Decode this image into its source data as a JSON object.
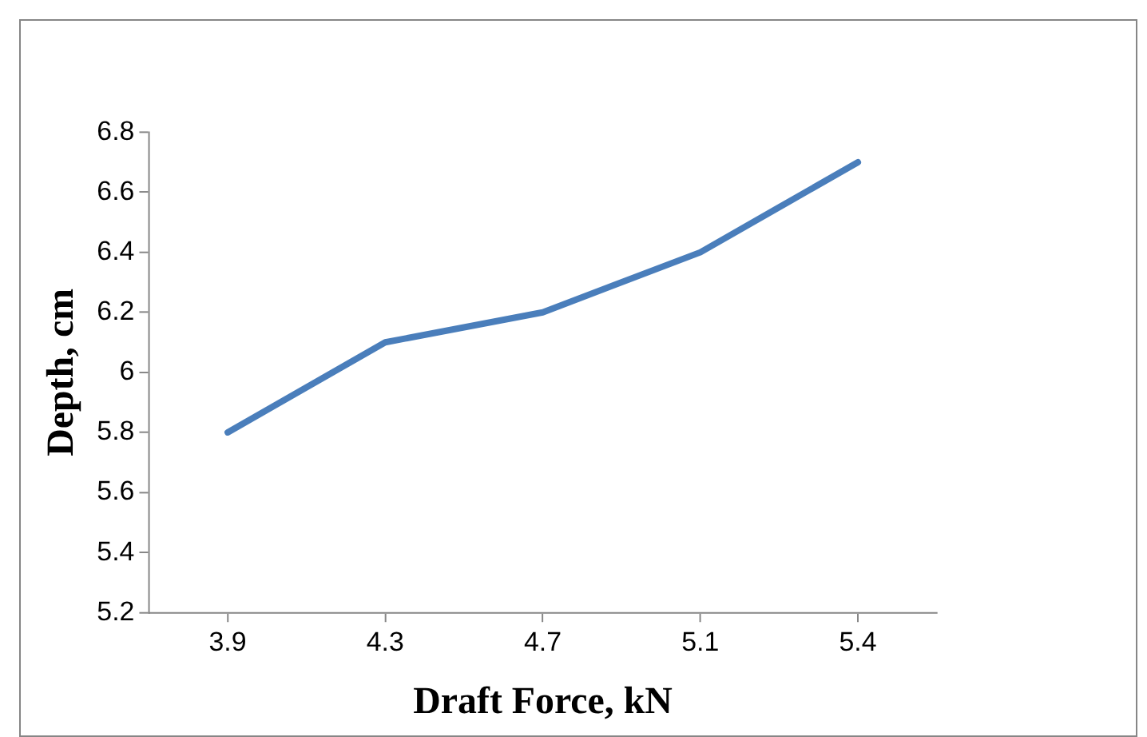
{
  "chart_data": {
    "type": "line",
    "xlabel": "Draft Force, kN",
    "ylabel": "Depth, cm",
    "categories": [
      "3.9",
      "4.3",
      "4.7",
      "5.1",
      "5.4"
    ],
    "series": [
      {
        "color": "#4a7ebb",
        "values": [
          5.8,
          6.1,
          6.2,
          6.4,
          6.7
        ]
      }
    ],
    "ylim": [
      5.2,
      6.8
    ],
    "yticks": [
      5.2,
      5.4,
      5.6,
      5.8,
      6,
      6.2,
      6.4,
      6.6,
      6.8
    ],
    "grid": false,
    "legend": false,
    "marker": "none",
    "line_style": "solid"
  }
}
